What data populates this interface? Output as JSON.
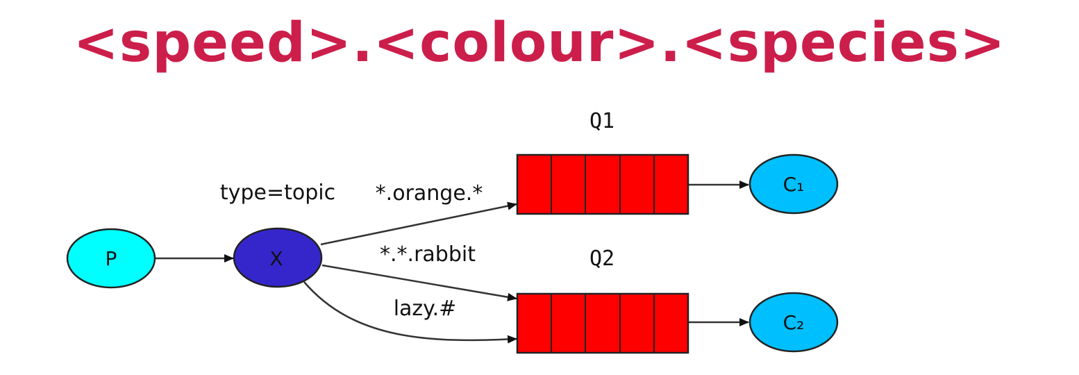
{
  "title": "<speed>.<colour>.<species>",
  "colors": {
    "title": "#cc1e4a",
    "producer_fill": "#00ffff",
    "exchange_fill": "#3526cc",
    "queue_fill": "#ff0000",
    "consumer_fill": "#00bfff",
    "stroke": "#222222"
  },
  "producer": {
    "label": "P"
  },
  "exchange": {
    "label": "X",
    "type_label": "type=topic"
  },
  "queues": [
    {
      "label": "Q1",
      "consumer": "C₁",
      "cells": 5
    },
    {
      "label": "Q2",
      "consumer": "C₂",
      "cells": 5
    }
  ],
  "bindings": [
    {
      "pattern": "*.orange.*",
      "queue": "Q1"
    },
    {
      "pattern": "*.*.rabbit",
      "queue": "Q2"
    },
    {
      "pattern": "lazy.#",
      "queue": "Q2"
    }
  ]
}
